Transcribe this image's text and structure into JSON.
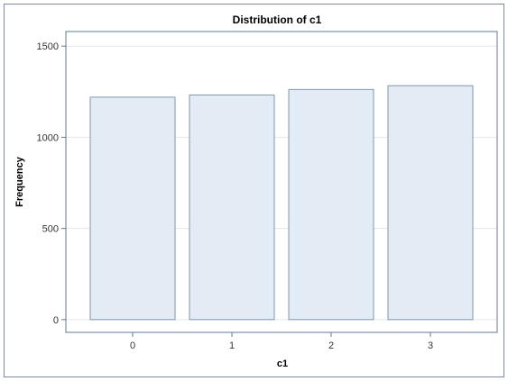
{
  "chart_data": {
    "type": "bar",
    "title": "Distribution of c1",
    "xlabel": "c1",
    "ylabel": "Frequency",
    "categories": [
      "0",
      "1",
      "2",
      "3"
    ],
    "values": [
      1220,
      1232,
      1262,
      1283
    ],
    "ylim": [
      -70,
      1580
    ],
    "yticks": [
      0,
      500,
      1000,
      1500
    ],
    "grid": true,
    "legend": "none",
    "colors": {
      "bar_fill": "#e3ebf4",
      "bar_stroke": "#7e97b1",
      "grid": "#e6e6e6",
      "axis": "#5f7896"
    }
  }
}
